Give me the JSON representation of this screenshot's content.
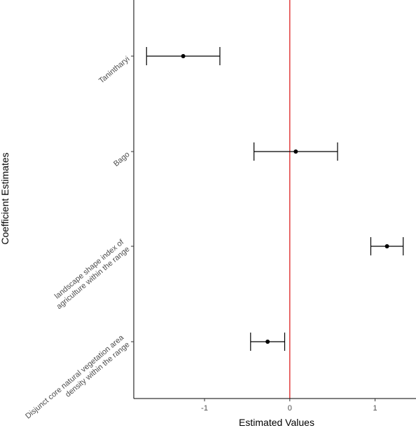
{
  "chart_data": {
    "type": "scatter",
    "subtype": "coefficient-plot-with-error-bars",
    "title": "",
    "xlabel": "Estimated Values",
    "ylabel": "Coefficient Estimates",
    "xlim": [
      -1.83,
      1.48
    ],
    "x_ticks": [
      {
        "value": -1,
        "label": "-1"
      },
      {
        "value": 0,
        "label": "0"
      },
      {
        "value": 1,
        "label": "1"
      }
    ],
    "reference_line": {
      "x": 0,
      "color": "#dd2222"
    },
    "grid": false,
    "legend": "none",
    "categories": [
      {
        "label_lines": [
          "Tanintharyi"
        ],
        "estimate": -1.25,
        "lower": -1.68,
        "upper": -0.82
      },
      {
        "label_lines": [
          "Bago"
        ],
        "estimate": 0.07,
        "lower": -0.42,
        "upper": 0.56
      },
      {
        "label_lines": [
          "landscape shape index of",
          "agriculture within the range"
        ],
        "estimate": 1.14,
        "lower": 0.95,
        "upper": 1.33
      },
      {
        "label_lines": [
          "Disjunct core natural vegetation area",
          "density within the range"
        ],
        "estimate": -0.26,
        "lower": -0.46,
        "upper": -0.06
      }
    ],
    "colors": {
      "points": "#000000",
      "error_bars": "#000000",
      "axis": "#000000"
    }
  }
}
